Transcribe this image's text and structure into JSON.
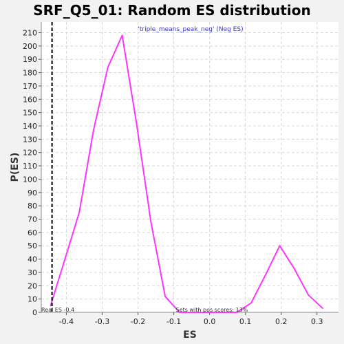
{
  "chart_data": {
    "type": "line",
    "title": "SRF_Q5_01: Random ES distribution",
    "xlabel": "ES",
    "ylabel": "P(ES)",
    "xlim": [
      -0.47,
      0.36
    ],
    "ylim": [
      0,
      218
    ],
    "x_ticks": [
      -0.4,
      -0.3,
      -0.2,
      -0.1,
      0.0,
      0.1,
      0.2,
      0.3
    ],
    "x_tick_labels": [
      "-0.4",
      "-0.3",
      "-0.2",
      "-0.1",
      "0.0",
      "0.1",
      "0.2",
      "0.3"
    ],
    "y_ticks": [
      0,
      10,
      20,
      30,
      40,
      50,
      60,
      70,
      80,
      90,
      100,
      110,
      120,
      130,
      140,
      150,
      160,
      170,
      180,
      190,
      200,
      210
    ],
    "y_tick_labels": [
      "0",
      "10",
      "20",
      "30",
      "40",
      "50",
      "60",
      "70",
      "80",
      "90",
      "100",
      "110",
      "120",
      "130",
      "140",
      "150",
      "160",
      "170",
      "180",
      "190",
      "200",
      "210"
    ],
    "grid": true,
    "legend_position": "top-center",
    "series": [
      {
        "name": "'triple_means_peak_neg' (Neg ES)",
        "color": "#ff33ff",
        "x": [
          -0.444,
          -0.404,
          -0.364,
          -0.324,
          -0.284,
          -0.244,
          -0.204,
          -0.164,
          -0.124,
          -0.084,
          -0.044,
          -0.004,
          0.036,
          0.076,
          0.116,
          0.156,
          0.196,
          0.236,
          0.276,
          0.316
        ],
        "y": [
          5,
          40,
          75,
          137,
          184,
          208,
          142,
          68,
          12,
          0,
          0,
          0,
          0,
          0,
          7,
          28,
          50,
          33,
          13,
          3
        ]
      }
    ],
    "reference_line": {
      "x": -0.44,
      "label": "Real ES -0.4",
      "color": "#000000",
      "style": "dashed"
    },
    "annotations": [
      "Sets with pos scores: 13%"
    ]
  }
}
